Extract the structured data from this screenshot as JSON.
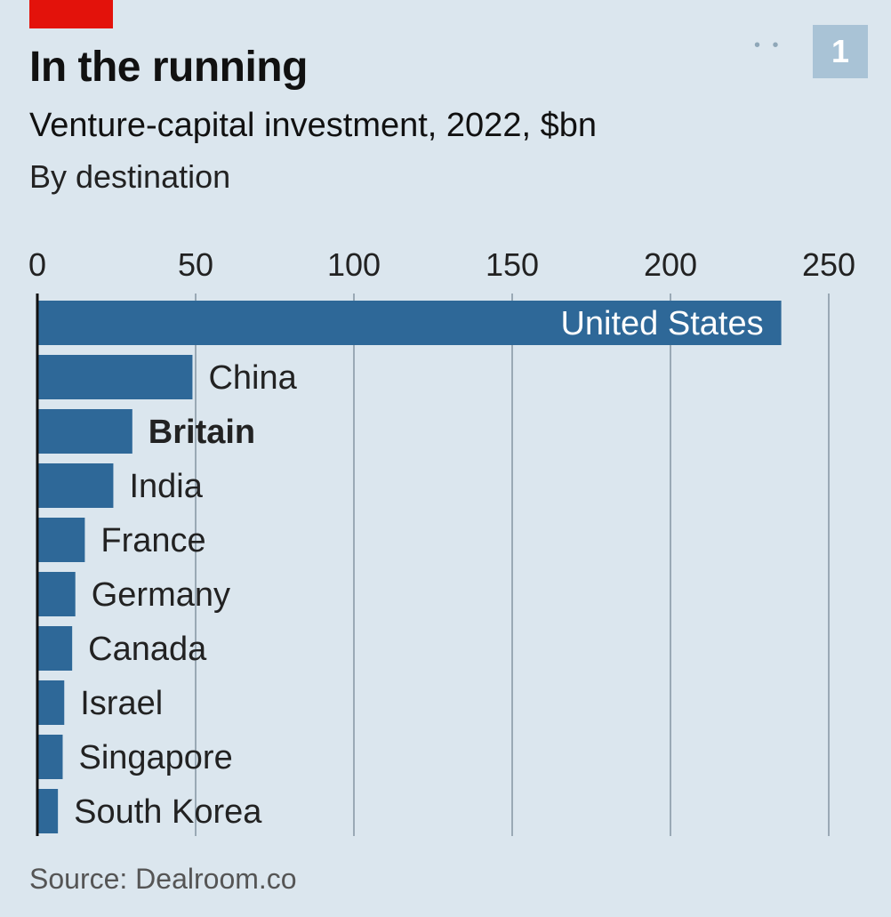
{
  "header": {
    "title": "In the running",
    "subtitle": "Venture-capital investment, 2022, $bn",
    "subsubtitle": "By destination",
    "chart_number": "1",
    "dots": "• •"
  },
  "footer": {
    "source": "Source: Dealroom.co"
  },
  "colors": {
    "bar": "#2e6898",
    "background": "#dbe6ee",
    "grid": "#9aa9b5",
    "accent": "#e3120b",
    "badge": "#a9c3d6"
  },
  "chart_data": {
    "type": "bar",
    "orientation": "horizontal",
    "title": "In the running",
    "subtitle": "Venture-capital investment, 2022, $bn",
    "xlabel": "",
    "ylabel": "",
    "xlim": [
      0,
      250
    ],
    "ticks": [
      0,
      50,
      100,
      150,
      200,
      250
    ],
    "tick_labels": [
      "0",
      "50",
      "100",
      "150",
      "200",
      "250"
    ],
    "grid": true,
    "categories": [
      "United States",
      "China",
      "Britain",
      "India",
      "France",
      "Germany",
      "Canada",
      "Israel",
      "Singapore",
      "South Korea"
    ],
    "values": [
      235,
      49,
      30,
      24,
      15,
      12,
      11,
      8.5,
      8,
      6.5
    ],
    "highlight": "Britain",
    "label_inside": [
      "United States"
    ]
  }
}
